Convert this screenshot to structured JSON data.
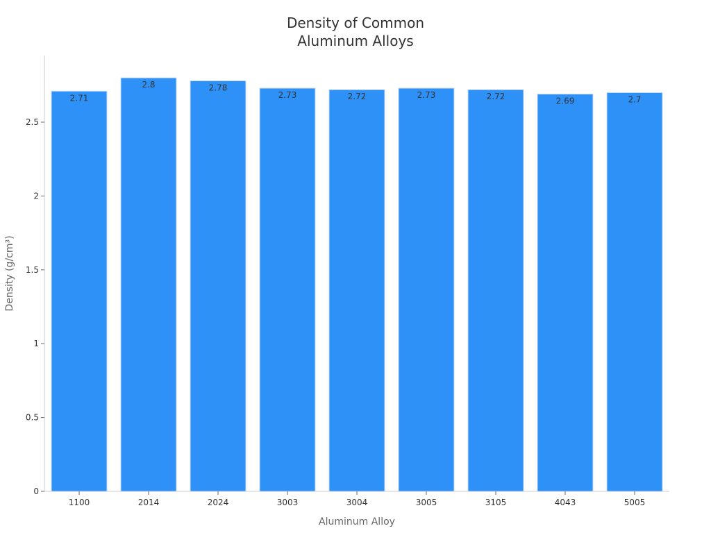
{
  "chart_data": {
    "type": "bar",
    "title_lines": [
      "Density of Common",
      "Aluminum Alloys"
    ],
    "xlabel": "Aluminum Alloy",
    "ylabel": "Density (g/cm³)",
    "categories": [
      "1100",
      "2014",
      "2024",
      "3003",
      "3004",
      "3005",
      "3105",
      "4043",
      "5005"
    ],
    "values": [
      2.71,
      2.8,
      2.78,
      2.73,
      2.72,
      2.73,
      2.72,
      2.69,
      2.7
    ],
    "data_labels": [
      "2.71",
      "2.8",
      "2.78",
      "2.73",
      "2.72",
      "2.73",
      "2.72",
      "2.69",
      "2.7"
    ],
    "ylim": [
      0,
      2.95
    ],
    "yticks": [
      0,
      0.5,
      1,
      1.5,
      2,
      2.5
    ],
    "ytick_labels": [
      "0",
      "0.5",
      "1",
      "1.5",
      "2",
      "2.5"
    ],
    "grid": false,
    "legend": "none",
    "bar_color": "#2e91f7",
    "bar_edge_color": "#c8dcf5"
  }
}
